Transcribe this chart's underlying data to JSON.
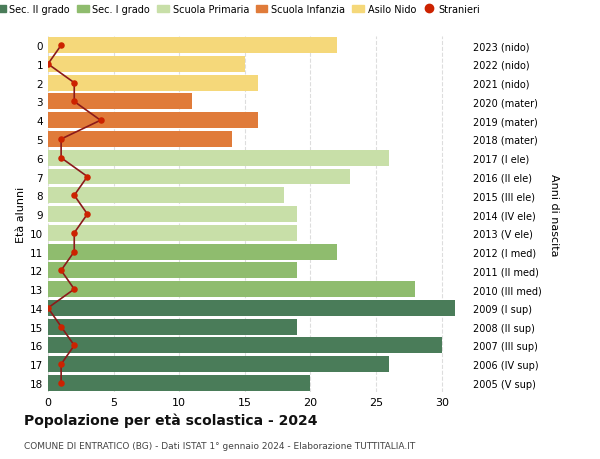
{
  "ages": [
    0,
    1,
    2,
    3,
    4,
    5,
    6,
    7,
    8,
    9,
    10,
    11,
    12,
    13,
    14,
    15,
    16,
    17,
    18
  ],
  "right_labels": [
    "2023 (nido)",
    "2022 (nido)",
    "2021 (nido)",
    "2020 (mater)",
    "2019 (mater)",
    "2018 (mater)",
    "2017 (I ele)",
    "2016 (II ele)",
    "2015 (III ele)",
    "2014 (IV ele)",
    "2013 (V ele)",
    "2012 (I med)",
    "2011 (II med)",
    "2010 (III med)",
    "2009 (I sup)",
    "2008 (II sup)",
    "2007 (III sup)",
    "2006 (IV sup)",
    "2005 (V sup)"
  ],
  "bar_values": [
    22,
    15,
    16,
    11,
    16,
    14,
    26,
    23,
    18,
    19,
    19,
    22,
    19,
    28,
    31,
    19,
    30,
    26,
    20
  ],
  "bar_colors": [
    "#f5d87a",
    "#f5d87a",
    "#f5d87a",
    "#e07b3a",
    "#e07b3a",
    "#e07b3a",
    "#c8dfa8",
    "#c8dfa8",
    "#c8dfa8",
    "#c8dfa8",
    "#c8dfa8",
    "#8fbc6e",
    "#8fbc6e",
    "#8fbc6e",
    "#4a7c59",
    "#4a7c59",
    "#4a7c59",
    "#4a7c59",
    "#4a7c59"
  ],
  "stranieri_values": [
    1,
    0,
    2,
    2,
    4,
    1,
    1,
    3,
    2,
    3,
    2,
    2,
    1,
    2,
    0,
    1,
    2,
    1,
    1
  ],
  "legend_labels": [
    "Sec. II grado",
    "Sec. I grado",
    "Scuola Primaria",
    "Scuola Infanzia",
    "Asilo Nido",
    "Stranieri"
  ],
  "legend_colors": [
    "#4a7c59",
    "#8fbc6e",
    "#c8dfa8",
    "#e07b3a",
    "#f5d87a",
    "#cc2200"
  ],
  "ylabel_left": "Età alunni",
  "ylabel_right": "Anni di nascita",
  "title": "Popolazione per età scolastica - 2024",
  "subtitle": "COMUNE DI ENTRATICO (BG) - Dati ISTAT 1° gennaio 2024 - Elaborazione TUTTITALIA.IT",
  "xlim": [
    0,
    32
  ],
  "xticks": [
    0,
    5,
    10,
    15,
    20,
    25,
    30
  ],
  "background_color": "#ffffff",
  "stranieri_color": "#cc2200",
  "stranieri_line_color": "#8b1a1a"
}
